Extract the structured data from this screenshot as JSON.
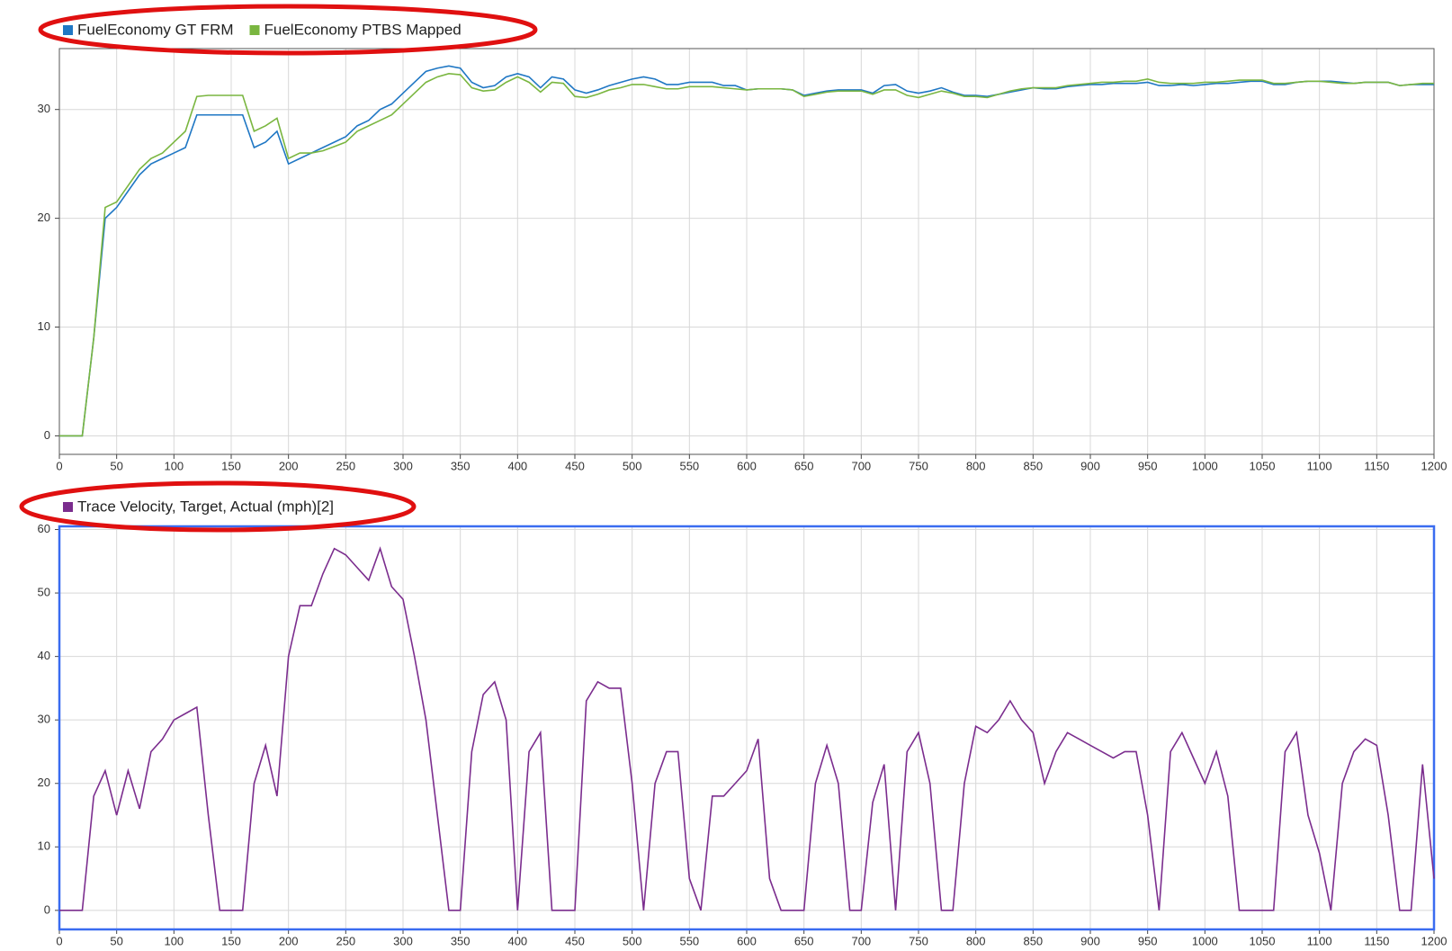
{
  "chart_data": [
    {
      "type": "line",
      "x": [
        0,
        10,
        20,
        30,
        40,
        50,
        60,
        70,
        80,
        90,
        100,
        110,
        120,
        130,
        140,
        150,
        160,
        170,
        180,
        190,
        200,
        210,
        220,
        230,
        240,
        250,
        260,
        270,
        280,
        290,
        300,
        310,
        320,
        330,
        340,
        350,
        360,
        370,
        380,
        390,
        400,
        410,
        420,
        430,
        440,
        450,
        460,
        470,
        480,
        490,
        500,
        510,
        520,
        530,
        540,
        550,
        560,
        570,
        580,
        590,
        600,
        610,
        620,
        630,
        640,
        650,
        660,
        670,
        680,
        690,
        700,
        710,
        720,
        730,
        740,
        750,
        760,
        770,
        780,
        790,
        800,
        810,
        820,
        830,
        840,
        850,
        860,
        870,
        880,
        890,
        900,
        910,
        920,
        930,
        940,
        950,
        960,
        970,
        980,
        990,
        1000,
        1010,
        1020,
        1030,
        1040,
        1050,
        1060,
        1070,
        1080,
        1090,
        1100,
        1110,
        1120,
        1130,
        1140,
        1150,
        1160,
        1170,
        1180,
        1190,
        1200
      ],
      "series": [
        {
          "name": "FuelEconomy GT FRM",
          "color": "#1f77c4",
          "values": [
            0,
            0,
            0,
            9,
            20,
            21,
            22.5,
            24,
            25,
            25.5,
            26,
            26.5,
            29.5,
            29.5,
            29.5,
            29.5,
            29.5,
            26.5,
            27,
            28,
            25,
            25.5,
            26,
            26.5,
            27,
            27.5,
            28.5,
            29,
            30,
            30.5,
            31.5,
            32.5,
            33.5,
            33.8,
            34,
            33.8,
            32.5,
            32,
            32.2,
            33,
            33.3,
            33,
            32,
            33,
            32.8,
            31.8,
            31.5,
            31.8,
            32.2,
            32.5,
            32.8,
            33,
            32.8,
            32.3,
            32.3,
            32.5,
            32.5,
            32.5,
            32.2,
            32.2,
            31.8,
            31.9,
            31.9,
            31.9,
            31.8,
            31.3,
            31.5,
            31.7,
            31.8,
            31.8,
            31.8,
            31.5,
            32.2,
            32.3,
            31.7,
            31.5,
            31.7,
            32,
            31.6,
            31.3,
            31.3,
            31.2,
            31.4,
            31.6,
            31.8,
            32,
            31.9,
            31.9,
            32.1,
            32.2,
            32.3,
            32.3,
            32.4,
            32.4,
            32.4,
            32.5,
            32.2,
            32.2,
            32.3,
            32.2,
            32.3,
            32.4,
            32.4,
            32.5,
            32.6,
            32.6,
            32.3,
            32.3,
            32.5,
            32.6,
            32.6,
            32.6,
            32.5,
            32.4,
            32.5,
            32.5,
            32.5,
            32.2,
            32.3,
            32.3,
            32.3
          ]
        },
        {
          "name": "FuelEconomy PTBS Mapped",
          "color": "#7ab640",
          "values": [
            0,
            0,
            0,
            9,
            21,
            21.5,
            23,
            24.5,
            25.5,
            26,
            27,
            28,
            31.2,
            31.3,
            31.3,
            31.3,
            31.3,
            28,
            28.5,
            29.2,
            25.5,
            26,
            26,
            26.2,
            26.6,
            27,
            28,
            28.5,
            29,
            29.5,
            30.5,
            31.5,
            32.5,
            33,
            33.3,
            33.2,
            32,
            31.7,
            31.8,
            32.5,
            33,
            32.5,
            31.6,
            32.5,
            32.4,
            31.2,
            31.1,
            31.4,
            31.8,
            32,
            32.3,
            32.3,
            32.1,
            31.9,
            31.9,
            32.1,
            32.1,
            32.1,
            32,
            31.9,
            31.8,
            31.9,
            31.9,
            31.9,
            31.8,
            31.2,
            31.4,
            31.6,
            31.7,
            31.7,
            31.7,
            31.4,
            31.8,
            31.8,
            31.3,
            31.1,
            31.4,
            31.7,
            31.5,
            31.2,
            31.2,
            31.1,
            31.4,
            31.7,
            31.9,
            32,
            32,
            32,
            32.2,
            32.3,
            32.4,
            32.5,
            32.5,
            32.6,
            32.6,
            32.8,
            32.5,
            32.4,
            32.4,
            32.4,
            32.5,
            32.5,
            32.6,
            32.7,
            32.7,
            32.7,
            32.4,
            32.4,
            32.5,
            32.6,
            32.6,
            32.5,
            32.4,
            32.4,
            32.5,
            32.5,
            32.5,
            32.2,
            32.3,
            32.4,
            32.4
          ]
        }
      ],
      "xlim": [
        0,
        1200
      ],
      "xticks": [
        0,
        50,
        100,
        150,
        200,
        250,
        300,
        350,
        400,
        450,
        500,
        550,
        600,
        650,
        700,
        750,
        800,
        850,
        900,
        950,
        1000,
        1050,
        1100,
        1150,
        1200
      ],
      "ylim": [
        -1.7,
        35.6
      ],
      "yticks": [
        0,
        10,
        20,
        30
      ],
      "grid": true,
      "legend": "top-left"
    },
    {
      "type": "line",
      "x": [
        0,
        10,
        20,
        30,
        40,
        50,
        60,
        70,
        80,
        90,
        100,
        110,
        120,
        130,
        140,
        150,
        160,
        170,
        180,
        190,
        200,
        210,
        220,
        230,
        240,
        250,
        260,
        270,
        280,
        290,
        300,
        310,
        320,
        330,
        340,
        350,
        360,
        370,
        380,
        390,
        400,
        410,
        420,
        430,
        440,
        450,
        460,
        470,
        480,
        490,
        500,
        510,
        520,
        530,
        540,
        550,
        560,
        570,
        580,
        590,
        600,
        610,
        620,
        630,
        640,
        650,
        660,
        670,
        680,
        690,
        700,
        710,
        720,
        730,
        740,
        750,
        760,
        770,
        780,
        790,
        800,
        810,
        820,
        830,
        840,
        850,
        860,
        870,
        880,
        890,
        900,
        910,
        920,
        930,
        940,
        950,
        960,
        970,
        980,
        990,
        1000,
        1010,
        1020,
        1030,
        1040,
        1050,
        1060,
        1070,
        1080,
        1090,
        1100,
        1110,
        1120,
        1130,
        1140,
        1150,
        1160,
        1170,
        1180,
        1190,
        1200
      ],
      "series": [
        {
          "name": "Trace Velocity, Target, Actual (mph)[2]",
          "color": "#7b2d8e",
          "values": [
            0,
            0,
            0,
            18,
            22,
            15,
            22,
            16,
            25,
            27,
            30,
            31,
            32,
            15,
            0,
            0,
            0,
            20,
            26,
            18,
            40,
            48,
            48,
            53,
            57,
            56,
            54,
            52,
            57,
            51,
            49,
            40,
            30,
            15,
            0,
            0,
            25,
            34,
            36,
            30,
            0,
            25,
            28,
            0,
            0,
            0,
            33,
            36,
            35,
            35,
            20,
            0,
            20,
            25,
            25,
            5,
            0,
            18,
            18,
            20,
            22,
            27,
            5,
            0,
            0,
            0,
            20,
            26,
            20,
            0,
            0,
            17,
            23,
            0,
            25,
            28,
            20,
            0,
            0,
            20,
            29,
            28,
            30,
            33,
            30,
            28,
            20,
            25,
            28,
            27,
            26,
            25,
            24,
            25,
            25,
            15,
            0,
            25,
            28,
            24,
            20,
            25,
            18,
            0,
            0,
            0,
            0,
            25,
            28,
            15,
            9,
            0,
            20,
            25,
            27,
            26,
            15,
            0,
            0,
            23,
            5
          ]
        }
      ],
      "xlim": [
        0,
        1200
      ],
      "xticks": [
        0,
        50,
        100,
        150,
        200,
        250,
        300,
        350,
        400,
        450,
        500,
        550,
        600,
        650,
        700,
        750,
        800,
        850,
        900,
        950,
        1000,
        1050,
        1100,
        1150,
        1200
      ],
      "ylim": [
        -3,
        60.5
      ],
      "yticks": [
        0,
        10,
        20,
        30,
        40,
        50,
        60
      ],
      "grid": true,
      "legend": "top-left"
    }
  ]
}
